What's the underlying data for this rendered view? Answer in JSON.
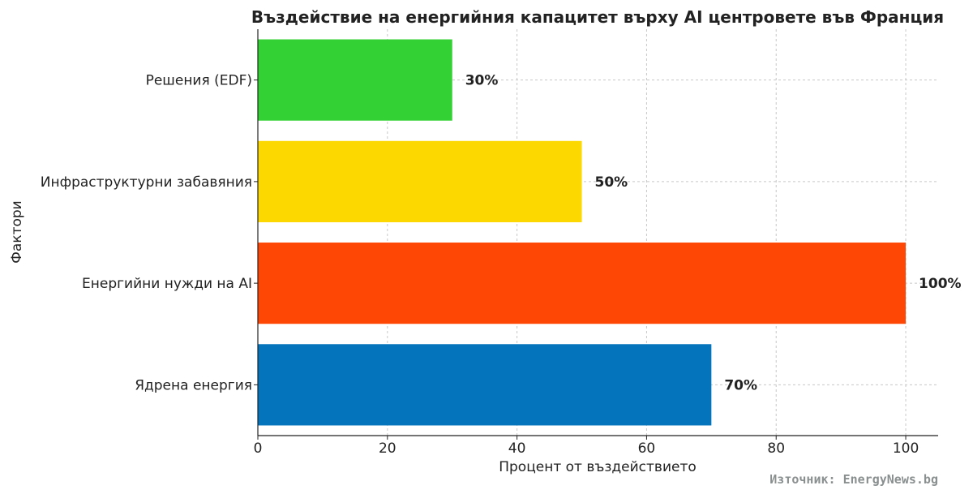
{
  "chart_data": {
    "type": "bar",
    "orientation": "horizontal",
    "title": "Въздействие на енергийния капацитет върху AI центровете във Франция",
    "xlabel": "Процент от въздействието",
    "ylabel": "Фактори",
    "categories": [
      "Ядрена енергия",
      "Енергийни нужди на AI",
      "Инфраструктурни забавяния",
      "Решения (EDF)"
    ],
    "values": [
      70,
      100,
      50,
      30
    ],
    "value_labels": [
      "70%",
      "100%",
      "50%",
      "30%"
    ],
    "colors": [
      "#0474bc",
      "#fe4704",
      "#fdd700",
      "#33d134"
    ],
    "xlim": [
      0,
      105
    ],
    "xticks": [
      0,
      20,
      40,
      60,
      80,
      100
    ],
    "grid": true
  },
  "source": "Източник: EnergyNews.bg"
}
